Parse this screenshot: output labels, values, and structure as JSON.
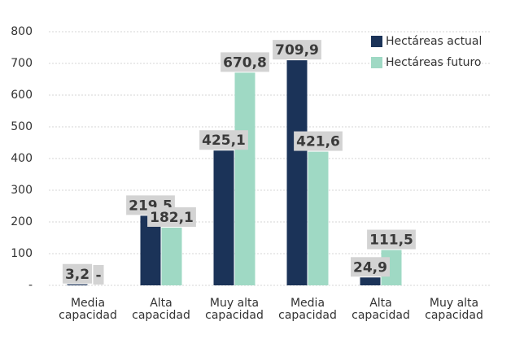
{
  "chart_data": {
    "type": "bar",
    "categories": [
      "Media capacidad",
      "Alta capacidad",
      "Muy alta capacidad",
      "Media capacidad",
      "Alta capacidad",
      "Muy alta capacidad"
    ],
    "series": [
      {
        "name": "Hectáreas actual",
        "color": "#1b3358",
        "values": [
          3.2,
          219.5,
          425.1,
          709.9,
          24.9,
          null
        ],
        "value_labels": [
          "3,2",
          "219,5",
          "425,1",
          "709,9",
          "24,9",
          null
        ]
      },
      {
        "name": "Hectáreas futuro",
        "color": "#9fd9c4",
        "values": [
          0,
          182.1,
          670.8,
          421.6,
          111.5,
          null
        ],
        "value_labels": [
          "-",
          "182,1",
          "670,8",
          "421,6",
          "111,5",
          null
        ]
      }
    ],
    "ylim": [
      0,
      800
    ],
    "yticks": [
      {
        "value": 0,
        "label": "-"
      },
      100,
      200,
      300,
      400,
      500,
      600,
      700,
      800
    ],
    "grid": true,
    "legend": "top-right"
  }
}
